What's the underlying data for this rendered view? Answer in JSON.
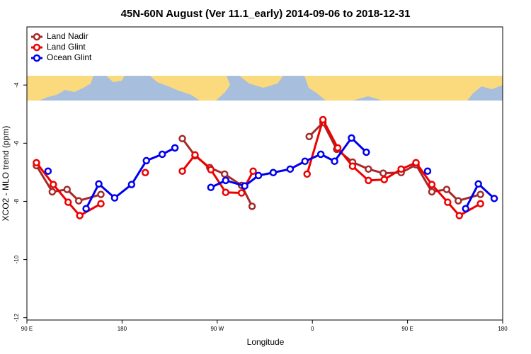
{
  "chart_data": {
    "type": "line",
    "title": "45N-60N August (Ver 11.1_early)   2014-09-06 to 2018-12-31",
    "x_label": "Longitude",
    "y_label": "XCO2 - MLO trend (ppm)",
    "xlim": [
      90,
      540
    ],
    "ylim": [
      -12.08,
      -2
    ],
    "xticks": [
      {
        "value": 90,
        "label": "90 E"
      },
      180,
      {
        "value": 270,
        "label": "90 W"
      },
      {
        "value": 360,
        "label": "0"
      },
      {
        "value": 450,
        "label": "90 E"
      },
      {
        "value": 540,
        "label": "180"
      }
    ],
    "yticks": [
      -4,
      -6,
      -8,
      -10,
      -12
    ],
    "legend": "top-left",
    "series": [
      {
        "name": "Land Nadir",
        "color": "#a52a2a",
        "x": [
          99,
          114,
          128,
          139,
          160,
          null,
          237,
          249,
          263,
          277,
          293,
          303,
          null,
          357,
          370,
          383,
          398,
          413,
          427,
          444,
          458,
          473,
          487,
          498,
          519
        ],
        "values": [
          -6.77,
          -7.67,
          -7.59,
          -7.98,
          -7.76,
          null,
          -5.84,
          -6.43,
          -6.84,
          -7.06,
          -7.45,
          -8.17,
          null,
          -5.77,
          -5.29,
          -6.21,
          -6.65,
          -6.89,
          -7.03,
          -7.01,
          -6.74,
          -7.67,
          -7.59,
          -7.98,
          -7.76
        ]
      },
      {
        "name": "Land Glint",
        "color": "#ee0000",
        "x": [
          99,
          115,
          129,
          140,
          160,
          null,
          202,
          null,
          237,
          249,
          264,
          278,
          293,
          304,
          null,
          355,
          370,
          384,
          398,
          413,
          428,
          444,
          458,
          473,
          488,
          499,
          519
        ],
        "values": [
          -6.67,
          -7.42,
          -8.03,
          -8.49,
          -8.08,
          null,
          -7.01,
          null,
          -6.96,
          -6.4,
          -6.91,
          -7.69,
          -7.71,
          -6.96,
          null,
          -7.06,
          -5.19,
          -6.16,
          -6.79,
          -7.28,
          -7.25,
          -6.89,
          -6.67,
          -7.42,
          -8.03,
          -8.49,
          -8.08
        ]
      },
      {
        "name": "Ocean Glint",
        "color": "#0000ee",
        "x": [
          110,
          null,
          146,
          158,
          173,
          189,
          203,
          218,
          230,
          null,
          264,
          278,
          296,
          309,
          323,
          339,
          353,
          368,
          381,
          397,
          411,
          null,
          469,
          null,
          505,
          517,
          532
        ],
        "values": [
          -6.96,
          null,
          -8.25,
          -7.4,
          -7.88,
          -7.42,
          -6.6,
          -6.38,
          -6.16,
          null,
          -7.52,
          -7.28,
          -7.47,
          -7.11,
          -7.01,
          -6.89,
          -6.62,
          -6.38,
          -6.62,
          -5.82,
          -6.31,
          null,
          -6.96,
          null,
          -8.25,
          -7.4,
          -7.9
        ]
      }
    ]
  }
}
